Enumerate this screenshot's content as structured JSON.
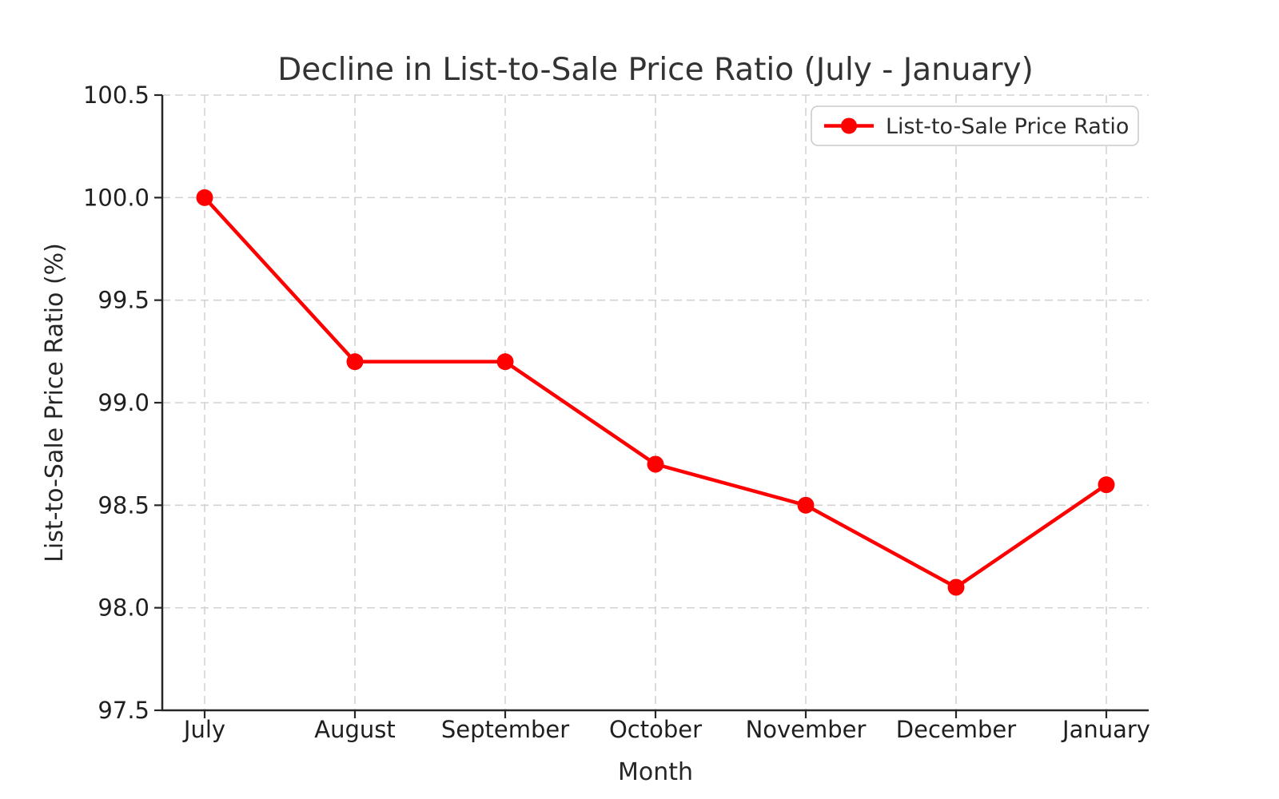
{
  "chart_data": {
    "type": "line",
    "title": "Decline in List-to-Sale Price Ratio (July - January)",
    "xlabel": "Month",
    "ylabel": "List-to-Sale Price Ratio (%)",
    "categories": [
      "July",
      "August",
      "September",
      "October",
      "November",
      "December",
      "January"
    ],
    "series": [
      {
        "name": "List-to-Sale Price Ratio",
        "values": [
          100.0,
          99.2,
          99.2,
          98.7,
          98.5,
          98.1,
          98.6
        ],
        "color": "#ff0000",
        "marker": "circle"
      }
    ],
    "ylim": [
      97.5,
      100.5
    ],
    "yticks": [
      97.5,
      98.0,
      98.5,
      99.0,
      99.5,
      100.0,
      100.5
    ],
    "ytick_labels": [
      "97.5",
      "98.0",
      "98.5",
      "99.0",
      "99.5",
      "100.0",
      "100.5"
    ],
    "grid": {
      "visible": true,
      "style": "dashed"
    },
    "legend": {
      "position": "upper-right",
      "entries": [
        "List-to-Sale Price Ratio"
      ]
    }
  },
  "style": {
    "background": "#ffffff",
    "line_color": "#ff0000",
    "grid_color": "#d2d2d2",
    "spine_color": "#262626",
    "tick_color": "#262626",
    "text_color": "#262626",
    "title_color": "#333333",
    "legend_border_color": "#cccccc",
    "legend_background": "#ffffff"
  }
}
